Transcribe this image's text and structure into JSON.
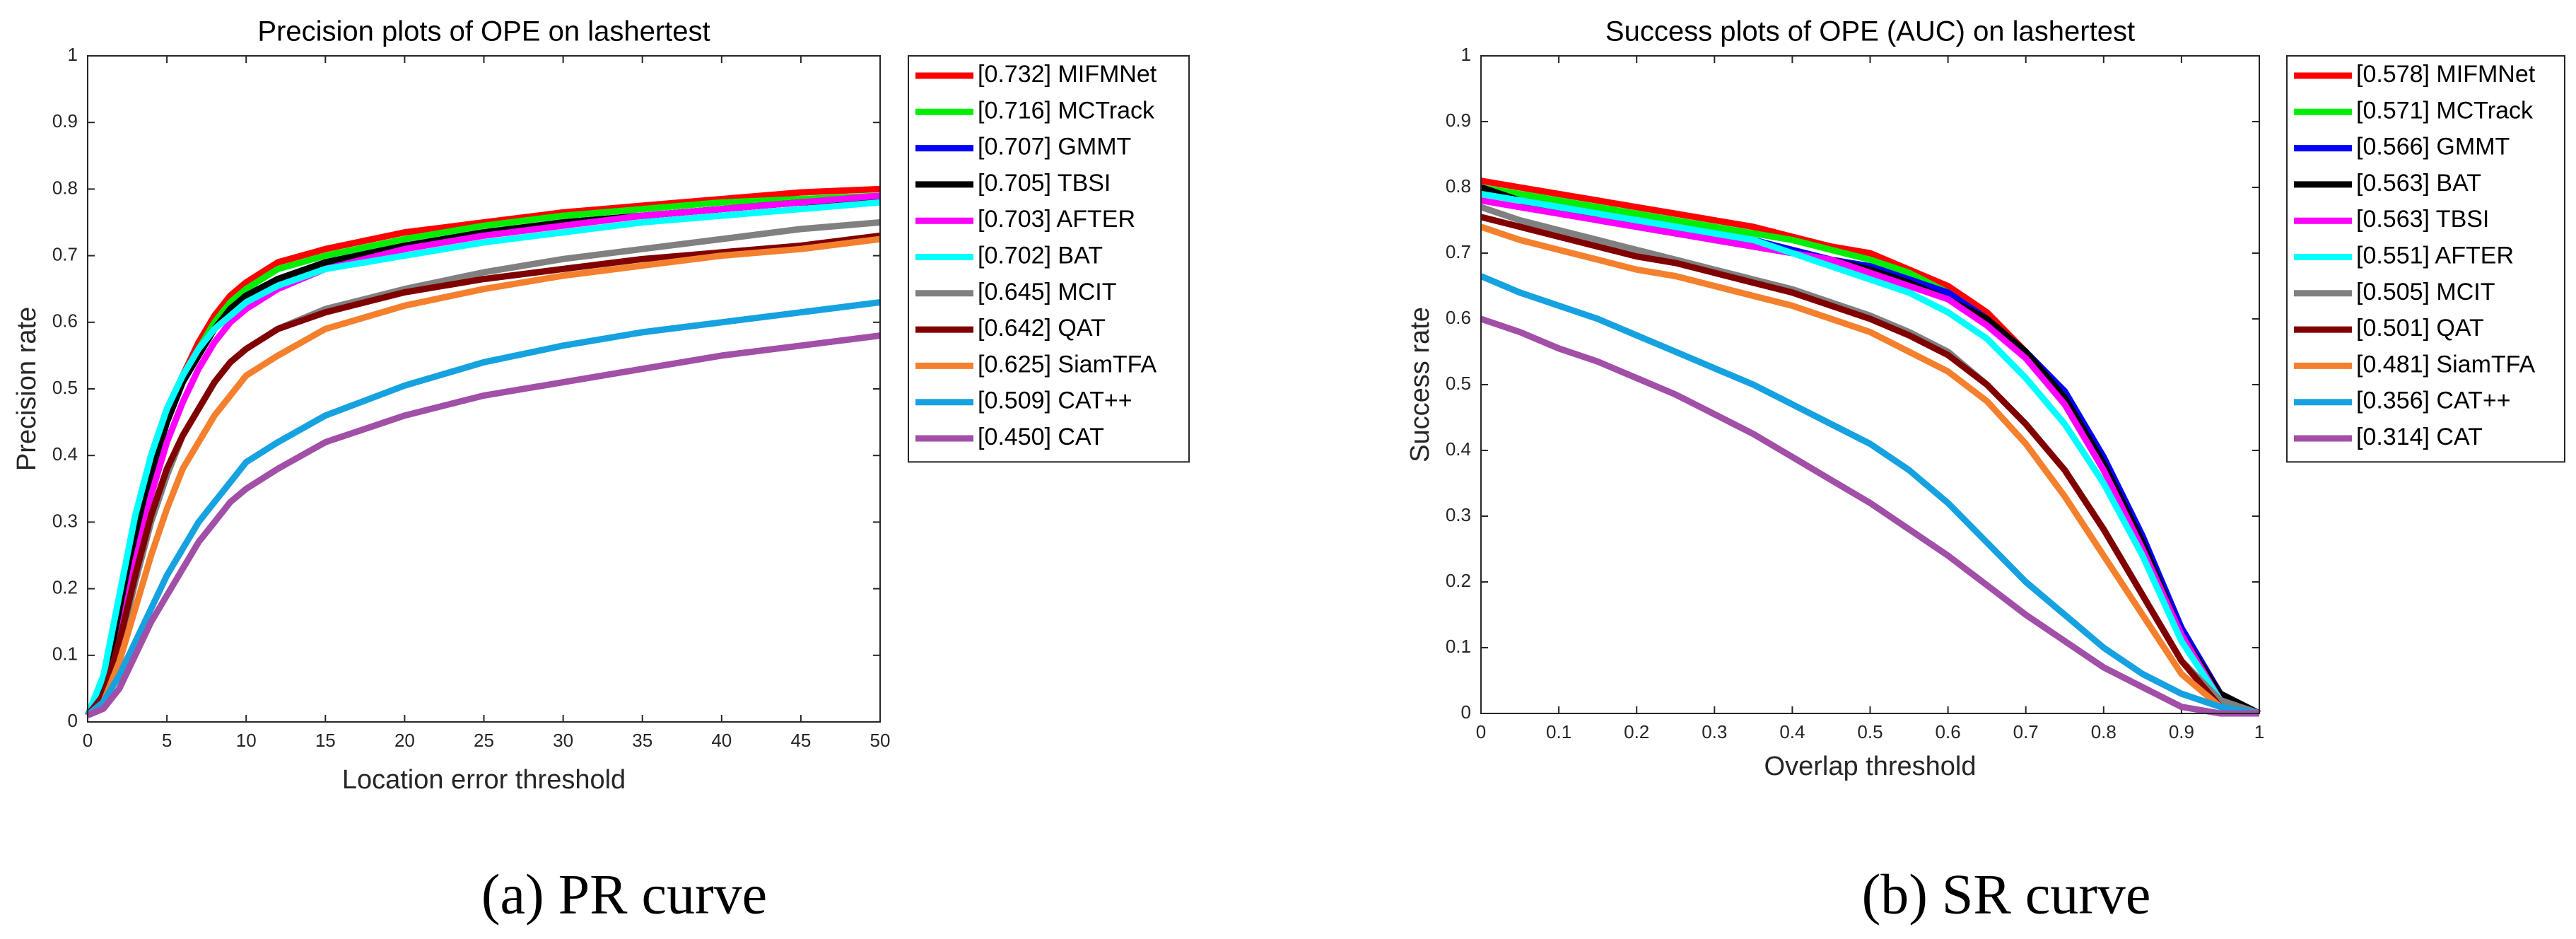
{
  "chart_data": [
    {
      "type": "line",
      "title": "Precision plots of OPE on lashertest",
      "x_label": "Location error threshold",
      "y_label": "Precision rate",
      "caption": "(a) PR curve",
      "legend": "outside-right",
      "grid": false,
      "xlim": [
        0,
        50
      ],
      "ylim": [
        0,
        1
      ],
      "xticks": [
        0,
        5,
        10,
        15,
        20,
        25,
        30,
        35,
        40,
        45,
        50
      ],
      "yticks": [
        0,
        0.1,
        0.2,
        0.3,
        0.4,
        0.5,
        0.6,
        0.7,
        0.8,
        0.9,
        1
      ],
      "x": [
        0,
        1,
        2,
        3,
        4,
        5,
        6,
        7,
        8,
        9,
        10,
        12,
        15,
        20,
        25,
        30,
        35,
        40,
        45,
        50
      ],
      "series": [
        {
          "name": "[0.732] MIFMNet",
          "color": "#ff0000",
          "values": [
            0.01,
            0.05,
            0.15,
            0.28,
            0.38,
            0.46,
            0.52,
            0.57,
            0.61,
            0.64,
            0.66,
            0.69,
            0.71,
            0.735,
            0.75,
            0.765,
            0.775,
            0.785,
            0.795,
            0.8
          ]
        },
        {
          "name": "[0.716] MCTrack",
          "color": "#00ee00",
          "values": [
            0.01,
            0.05,
            0.15,
            0.28,
            0.38,
            0.46,
            0.52,
            0.56,
            0.6,
            0.63,
            0.65,
            0.68,
            0.7,
            0.725,
            0.745,
            0.76,
            0.77,
            0.78,
            0.785,
            0.79
          ]
        },
        {
          "name": "[0.707] GMMT",
          "color": "#0000ff",
          "values": [
            0.01,
            0.06,
            0.17,
            0.3,
            0.4,
            0.47,
            0.52,
            0.56,
            0.59,
            0.62,
            0.64,
            0.665,
            0.69,
            0.715,
            0.735,
            0.75,
            0.76,
            0.77,
            0.78,
            0.785
          ]
        },
        {
          "name": "[0.705] TBSI",
          "color": "#000000",
          "values": [
            0.01,
            0.05,
            0.15,
            0.27,
            0.37,
            0.45,
            0.51,
            0.55,
            0.59,
            0.62,
            0.64,
            0.665,
            0.69,
            0.715,
            0.735,
            0.75,
            0.76,
            0.77,
            0.78,
            0.785
          ]
        },
        {
          "name": "[0.703] AFTER",
          "color": "#ff00ff",
          "values": [
            0.01,
            0.04,
            0.12,
            0.24,
            0.34,
            0.42,
            0.48,
            0.53,
            0.57,
            0.6,
            0.62,
            0.65,
            0.68,
            0.71,
            0.73,
            0.745,
            0.76,
            0.77,
            0.78,
            0.79
          ]
        },
        {
          "name": "[0.702] BAT",
          "color": "#00ffff",
          "values": [
            0.01,
            0.07,
            0.19,
            0.31,
            0.4,
            0.47,
            0.52,
            0.56,
            0.59,
            0.61,
            0.63,
            0.655,
            0.68,
            0.7,
            0.72,
            0.735,
            0.75,
            0.76,
            0.77,
            0.78
          ]
        },
        {
          "name": "[0.645] MCIT",
          "color": "#808080",
          "values": [
            0.01,
            0.04,
            0.11,
            0.21,
            0.3,
            0.37,
            0.43,
            0.47,
            0.51,
            0.54,
            0.56,
            0.59,
            0.62,
            0.65,
            0.675,
            0.695,
            0.71,
            0.725,
            0.74,
            0.75
          ]
        },
        {
          "name": "[0.642] QAT",
          "color": "#800000",
          "values": [
            0.01,
            0.04,
            0.12,
            0.22,
            0.31,
            0.38,
            0.43,
            0.47,
            0.51,
            0.54,
            0.56,
            0.59,
            0.615,
            0.645,
            0.665,
            0.68,
            0.695,
            0.705,
            0.715,
            0.73
          ]
        },
        {
          "name": "[0.625] SiamTFA",
          "color": "#f4802e",
          "values": [
            0.01,
            0.03,
            0.09,
            0.17,
            0.25,
            0.32,
            0.38,
            0.42,
            0.46,
            0.49,
            0.52,
            0.55,
            0.59,
            0.625,
            0.65,
            0.67,
            0.685,
            0.7,
            0.71,
            0.725
          ]
        },
        {
          "name": "[0.509] CAT++",
          "color": "#16a2e0",
          "values": [
            0.01,
            0.03,
            0.07,
            0.12,
            0.17,
            0.22,
            0.26,
            0.3,
            0.33,
            0.36,
            0.39,
            0.42,
            0.46,
            0.505,
            0.54,
            0.565,
            0.585,
            0.6,
            0.615,
            0.63
          ]
        },
        {
          "name": "[0.450] CAT",
          "color": "#a24fa8",
          "values": [
            0.01,
            0.02,
            0.05,
            0.1,
            0.15,
            0.19,
            0.23,
            0.27,
            0.3,
            0.33,
            0.35,
            0.38,
            0.42,
            0.46,
            0.49,
            0.51,
            0.53,
            0.55,
            0.565,
            0.58
          ]
        }
      ]
    },
    {
      "type": "line",
      "title": "Success plots of OPE (AUC) on lashertest",
      "x_label": "Overlap threshold",
      "y_label": "Success rate",
      "caption": "(b) SR curve",
      "legend": "outside-right",
      "grid": false,
      "xlim": [
        0,
        1
      ],
      "ylim": [
        0,
        1
      ],
      "xticks": [
        0,
        0.1,
        0.2,
        0.3,
        0.4,
        0.5,
        0.6,
        0.7,
        0.8,
        0.9,
        1
      ],
      "yticks": [
        0,
        0.1,
        0.2,
        0.3,
        0.4,
        0.5,
        0.6,
        0.7,
        0.8,
        0.9,
        1
      ],
      "x": [
        0,
        0.05,
        0.1,
        0.15,
        0.2,
        0.25,
        0.3,
        0.35,
        0.4,
        0.45,
        0.5,
        0.55,
        0.6,
        0.65,
        0.7,
        0.75,
        0.8,
        0.85,
        0.9,
        0.95,
        1
      ],
      "series": [
        {
          "name": "[0.578] MIFMNet",
          "color": "#ff0000",
          "values": [
            0.81,
            0.8,
            0.79,
            0.78,
            0.77,
            0.76,
            0.75,
            0.74,
            0.725,
            0.71,
            0.7,
            0.675,
            0.65,
            0.61,
            0.55,
            0.48,
            0.38,
            0.26,
            0.13,
            0.03,
            0
          ]
        },
        {
          "name": "[0.571] MCTrack",
          "color": "#00ee00",
          "values": [
            0.8,
            0.79,
            0.78,
            0.77,
            0.76,
            0.75,
            0.74,
            0.73,
            0.72,
            0.705,
            0.69,
            0.67,
            0.64,
            0.6,
            0.54,
            0.47,
            0.37,
            0.25,
            0.12,
            0.03,
            0
          ]
        },
        {
          "name": "[0.566] GMMT",
          "color": "#0000ff",
          "values": [
            0.8,
            0.78,
            0.77,
            0.76,
            0.75,
            0.74,
            0.73,
            0.72,
            0.705,
            0.69,
            0.68,
            0.66,
            0.64,
            0.6,
            0.55,
            0.49,
            0.39,
            0.27,
            0.13,
            0.03,
            0
          ]
        },
        {
          "name": "[0.563] BAT",
          "color": "#000000",
          "values": [
            0.8,
            0.78,
            0.765,
            0.75,
            0.74,
            0.73,
            0.72,
            0.71,
            0.7,
            0.69,
            0.675,
            0.655,
            0.63,
            0.6,
            0.55,
            0.48,
            0.38,
            0.26,
            0.12,
            0.03,
            0
          ]
        },
        {
          "name": "[0.563] TBSI",
          "color": "#ff00ff",
          "values": [
            0.78,
            0.77,
            0.76,
            0.75,
            0.74,
            0.73,
            0.72,
            0.71,
            0.7,
            0.69,
            0.67,
            0.65,
            0.63,
            0.59,
            0.54,
            0.47,
            0.37,
            0.25,
            0.12,
            0.02,
            0
          ]
        },
        {
          "name": "[0.551] AFTER",
          "color": "#00ffff",
          "values": [
            0.79,
            0.78,
            0.77,
            0.76,
            0.75,
            0.74,
            0.73,
            0.72,
            0.7,
            0.68,
            0.66,
            0.64,
            0.61,
            0.57,
            0.51,
            0.44,
            0.35,
            0.24,
            0.11,
            0.02,
            0
          ]
        },
        {
          "name": "[0.505] MCIT",
          "color": "#808080",
          "values": [
            0.77,
            0.75,
            0.735,
            0.72,
            0.705,
            0.69,
            0.675,
            0.66,
            0.645,
            0.625,
            0.605,
            0.58,
            0.55,
            0.5,
            0.44,
            0.37,
            0.28,
            0.18,
            0.08,
            0.02,
            0
          ]
        },
        {
          "name": "[0.501] QAT",
          "color": "#800000",
          "values": [
            0.755,
            0.74,
            0.725,
            0.71,
            0.695,
            0.685,
            0.67,
            0.655,
            0.64,
            0.62,
            0.6,
            0.575,
            0.545,
            0.5,
            0.44,
            0.37,
            0.28,
            0.18,
            0.08,
            0.01,
            0
          ]
        },
        {
          "name": "[0.481] SiamTFA",
          "color": "#f4802e",
          "values": [
            0.74,
            0.72,
            0.705,
            0.69,
            0.675,
            0.665,
            0.65,
            0.635,
            0.62,
            0.6,
            0.58,
            0.55,
            0.52,
            0.475,
            0.41,
            0.33,
            0.24,
            0.15,
            0.06,
            0.01,
            0
          ]
        },
        {
          "name": "[0.356] CAT++",
          "color": "#16a2e0",
          "values": [
            0.665,
            0.64,
            0.62,
            0.6,
            0.575,
            0.55,
            0.525,
            0.5,
            0.47,
            0.44,
            0.41,
            0.37,
            0.32,
            0.26,
            0.2,
            0.15,
            0.1,
            0.06,
            0.03,
            0.01,
            0
          ]
        },
        {
          "name": "[0.314] CAT",
          "color": "#a24fa8",
          "values": [
            0.6,
            0.58,
            0.555,
            0.535,
            0.51,
            0.485,
            0.455,
            0.425,
            0.39,
            0.355,
            0.32,
            0.28,
            0.24,
            0.195,
            0.15,
            0.11,
            0.07,
            0.04,
            0.01,
            0,
            0
          ]
        }
      ]
    }
  ]
}
